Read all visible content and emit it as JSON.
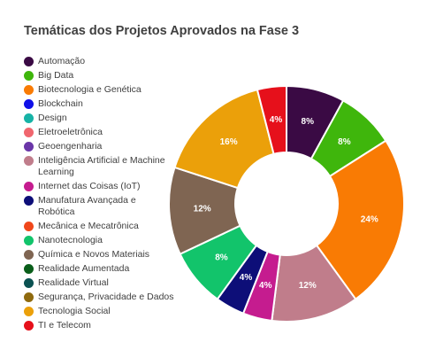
{
  "chart_data": {
    "type": "donut",
    "title": "Temáticas dos Projetos Aprovados na Fase 3",
    "legend_position": "left",
    "categories": [
      {
        "name": "Automação",
        "color": "#3a0a44"
      },
      {
        "name": "Big Data",
        "color": "#3fb60c"
      },
      {
        "name": "Biotecnologia e Genética",
        "color": "#f97b04"
      },
      {
        "name": "Blockchain",
        "color": "#1010e8"
      },
      {
        "name": "Design",
        "color": "#17b3a6"
      },
      {
        "name": "Eletroeletrônica",
        "color": "#f0666e"
      },
      {
        "name": "Geoengenharia",
        "color": "#6a36a8"
      },
      {
        "name": "Inteligência Artificial e Machine Learning",
        "color": "#c07d8b"
      },
      {
        "name": "Internet das Coisas (IoT)",
        "color": "#c51c8f"
      },
      {
        "name": "Manufatura Avançada e Robótica",
        "color": "#0d0e78"
      },
      {
        "name": "Mecânica e Mecatrônica",
        "color": "#f0471b"
      },
      {
        "name": "Nanotecnologia",
        "color": "#12c46b"
      },
      {
        "name": "Química e Novos Materiais",
        "color": "#7f6552"
      },
      {
        "name": "Realidade Aumentada",
        "color": "#0a5e1a"
      },
      {
        "name": "Realidade Virtual",
        "color": "#0b5252"
      },
      {
        "name": "Segurança, Privacidade e Dados",
        "color": "#8f6a0e"
      },
      {
        "name": "Tecnologia Social",
        "color": "#eba00a"
      },
      {
        "name": "TI e Telecom",
        "color": "#e6101b"
      }
    ],
    "values": [
      8,
      8,
      24,
      0,
      0,
      0,
      0,
      12,
      4,
      4,
      0,
      8,
      12,
      0,
      0,
      0,
      16,
      4
    ],
    "data_labels": [
      "8%",
      "8%",
      "24%",
      "",
      "",
      "",
      "",
      "12%",
      "4%",
      "4%",
      "",
      "8%",
      "12%",
      "",
      "",
      "",
      "16%",
      "4%"
    ]
  }
}
